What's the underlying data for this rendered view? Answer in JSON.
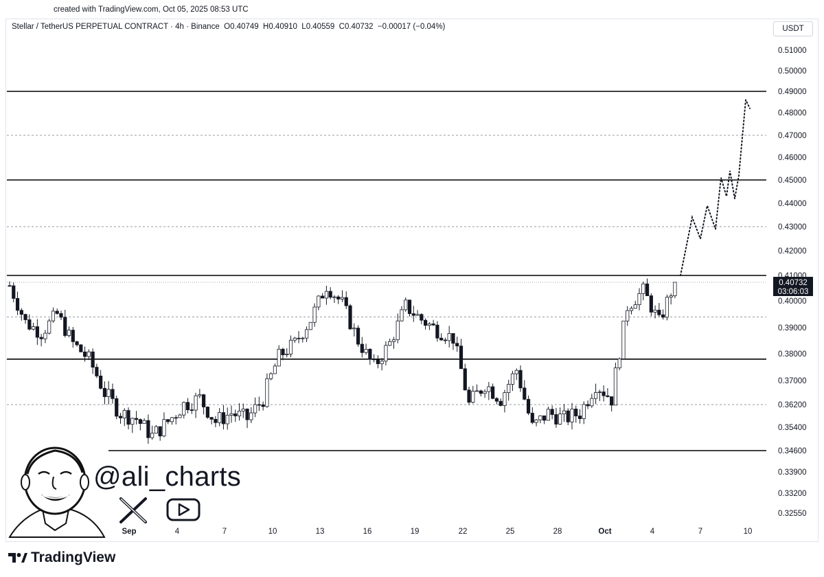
{
  "header": {
    "created_note": "created with TradingView.com, Oct 05, 2025 08:53 UTC"
  },
  "legend": {
    "symbol": "Stellar / TetherUS PERPETUAL CONTRACT · 4h · Binance",
    "open": "O0.40749",
    "high": "H0.40910",
    "low": "L0.40559",
    "close": "C0.40732",
    "change": "−0.00017 (−0.04%)"
  },
  "currency": "USDT",
  "price_label": {
    "price": "0.40732",
    "countdown": "03:06:03"
  },
  "watermark": {
    "handle": "@ali_charts"
  },
  "branding": {
    "logo_text": "TradingView"
  },
  "colors": {
    "candle": "#131722",
    "level": "#000000",
    "grid_dashed": "#9598a1",
    "price_tag": "#131722"
  },
  "chart_data": {
    "type": "candlestick",
    "symbol": "XLMUSDT.P",
    "timeframe": "4h",
    "ylim": [
      0.3255,
      0.514
    ],
    "y_ticks": [
      "0.51000",
      "0.50000",
      "0.49000",
      "0.48000",
      "0.47000",
      "0.46000",
      "0.45000",
      "0.44000",
      "0.43000",
      "0.42000",
      "0.41000",
      "0.40000",
      "0.39000",
      "0.38000",
      "0.37000",
      "0.36200",
      "0.35400",
      "0.34600",
      "0.33900",
      "0.33200",
      "0.32550"
    ],
    "x_ticks": [
      "25",
      "28",
      "Sep",
      "4",
      "7",
      "10",
      "13",
      "16",
      "19",
      "22",
      "25",
      "28",
      "Oct",
      "4",
      "7",
      "10"
    ],
    "horizontal_levels_solid": [
      0.49,
      0.45,
      0.41,
      0.378,
      0.346
    ],
    "horizontal_levels_dashed": [
      0.47,
      0.43,
      0.394,
      0.362
    ],
    "last_price": 0.40732,
    "close_path": [
      {
        "x": "Aug 24",
        "y": 0.406
      },
      {
        "x": "Aug 25",
        "y": 0.392
      },
      {
        "x": "Aug 26",
        "y": 0.388
      },
      {
        "x": "Aug 27",
        "y": 0.395
      },
      {
        "x": "Aug 28",
        "y": 0.384
      },
      {
        "x": "Aug 29",
        "y": 0.378
      },
      {
        "x": "Aug 30",
        "y": 0.366
      },
      {
        "x": "Aug 31",
        "y": 0.359
      },
      {
        "x": "Sep 1",
        "y": 0.357
      },
      {
        "x": "Sep 2",
        "y": 0.351
      },
      {
        "x": "Sep 3",
        "y": 0.356
      },
      {
        "x": "Sep 4",
        "y": 0.362
      },
      {
        "x": "Sep 5",
        "y": 0.364
      },
      {
        "x": "Sep 6",
        "y": 0.356
      },
      {
        "x": "Sep 7",
        "y": 0.359
      },
      {
        "x": "Sep 8",
        "y": 0.357
      },
      {
        "x": "Sep 9",
        "y": 0.364
      },
      {
        "x": "Sep 10",
        "y": 0.379
      },
      {
        "x": "Sep 11",
        "y": 0.384
      },
      {
        "x": "Sep 12",
        "y": 0.393
      },
      {
        "x": "Sep 13",
        "y": 0.406
      },
      {
        "x": "Sep 14",
        "y": 0.399
      },
      {
        "x": "Sep 15",
        "y": 0.385
      },
      {
        "x": "Sep 16",
        "y": 0.375
      },
      {
        "x": "Sep 17",
        "y": 0.384
      },
      {
        "x": "Sep 18",
        "y": 0.398
      },
      {
        "x": "Sep 19",
        "y": 0.393
      },
      {
        "x": "Sep 20",
        "y": 0.389
      },
      {
        "x": "Sep 21",
        "y": 0.386
      },
      {
        "x": "Sep 22",
        "y": 0.362
      },
      {
        "x": "Sep 23",
        "y": 0.369
      },
      {
        "x": "Sep 24",
        "y": 0.364
      },
      {
        "x": "Sep 25",
        "y": 0.374
      },
      {
        "x": "Sep 26",
        "y": 0.354
      },
      {
        "x": "Sep 27",
        "y": 0.359
      },
      {
        "x": "Sep 28",
        "y": 0.357
      },
      {
        "x": "Sep 29",
        "y": 0.359
      },
      {
        "x": "Sep 30",
        "y": 0.369
      },
      {
        "x": "Oct 1",
        "y": 0.364
      },
      {
        "x": "Oct 2",
        "y": 0.398
      },
      {
        "x": "Oct 3",
        "y": 0.404
      },
      {
        "x": "Oct 4",
        "y": 0.392
      },
      {
        "x": "Oct 5",
        "y": 0.40732
      }
    ],
    "projection": [
      0.41,
      0.434,
      0.425,
      0.439,
      0.429,
      0.451,
      0.443,
      0.454,
      0.442,
      0.452,
      0.486,
      0.482
    ]
  }
}
